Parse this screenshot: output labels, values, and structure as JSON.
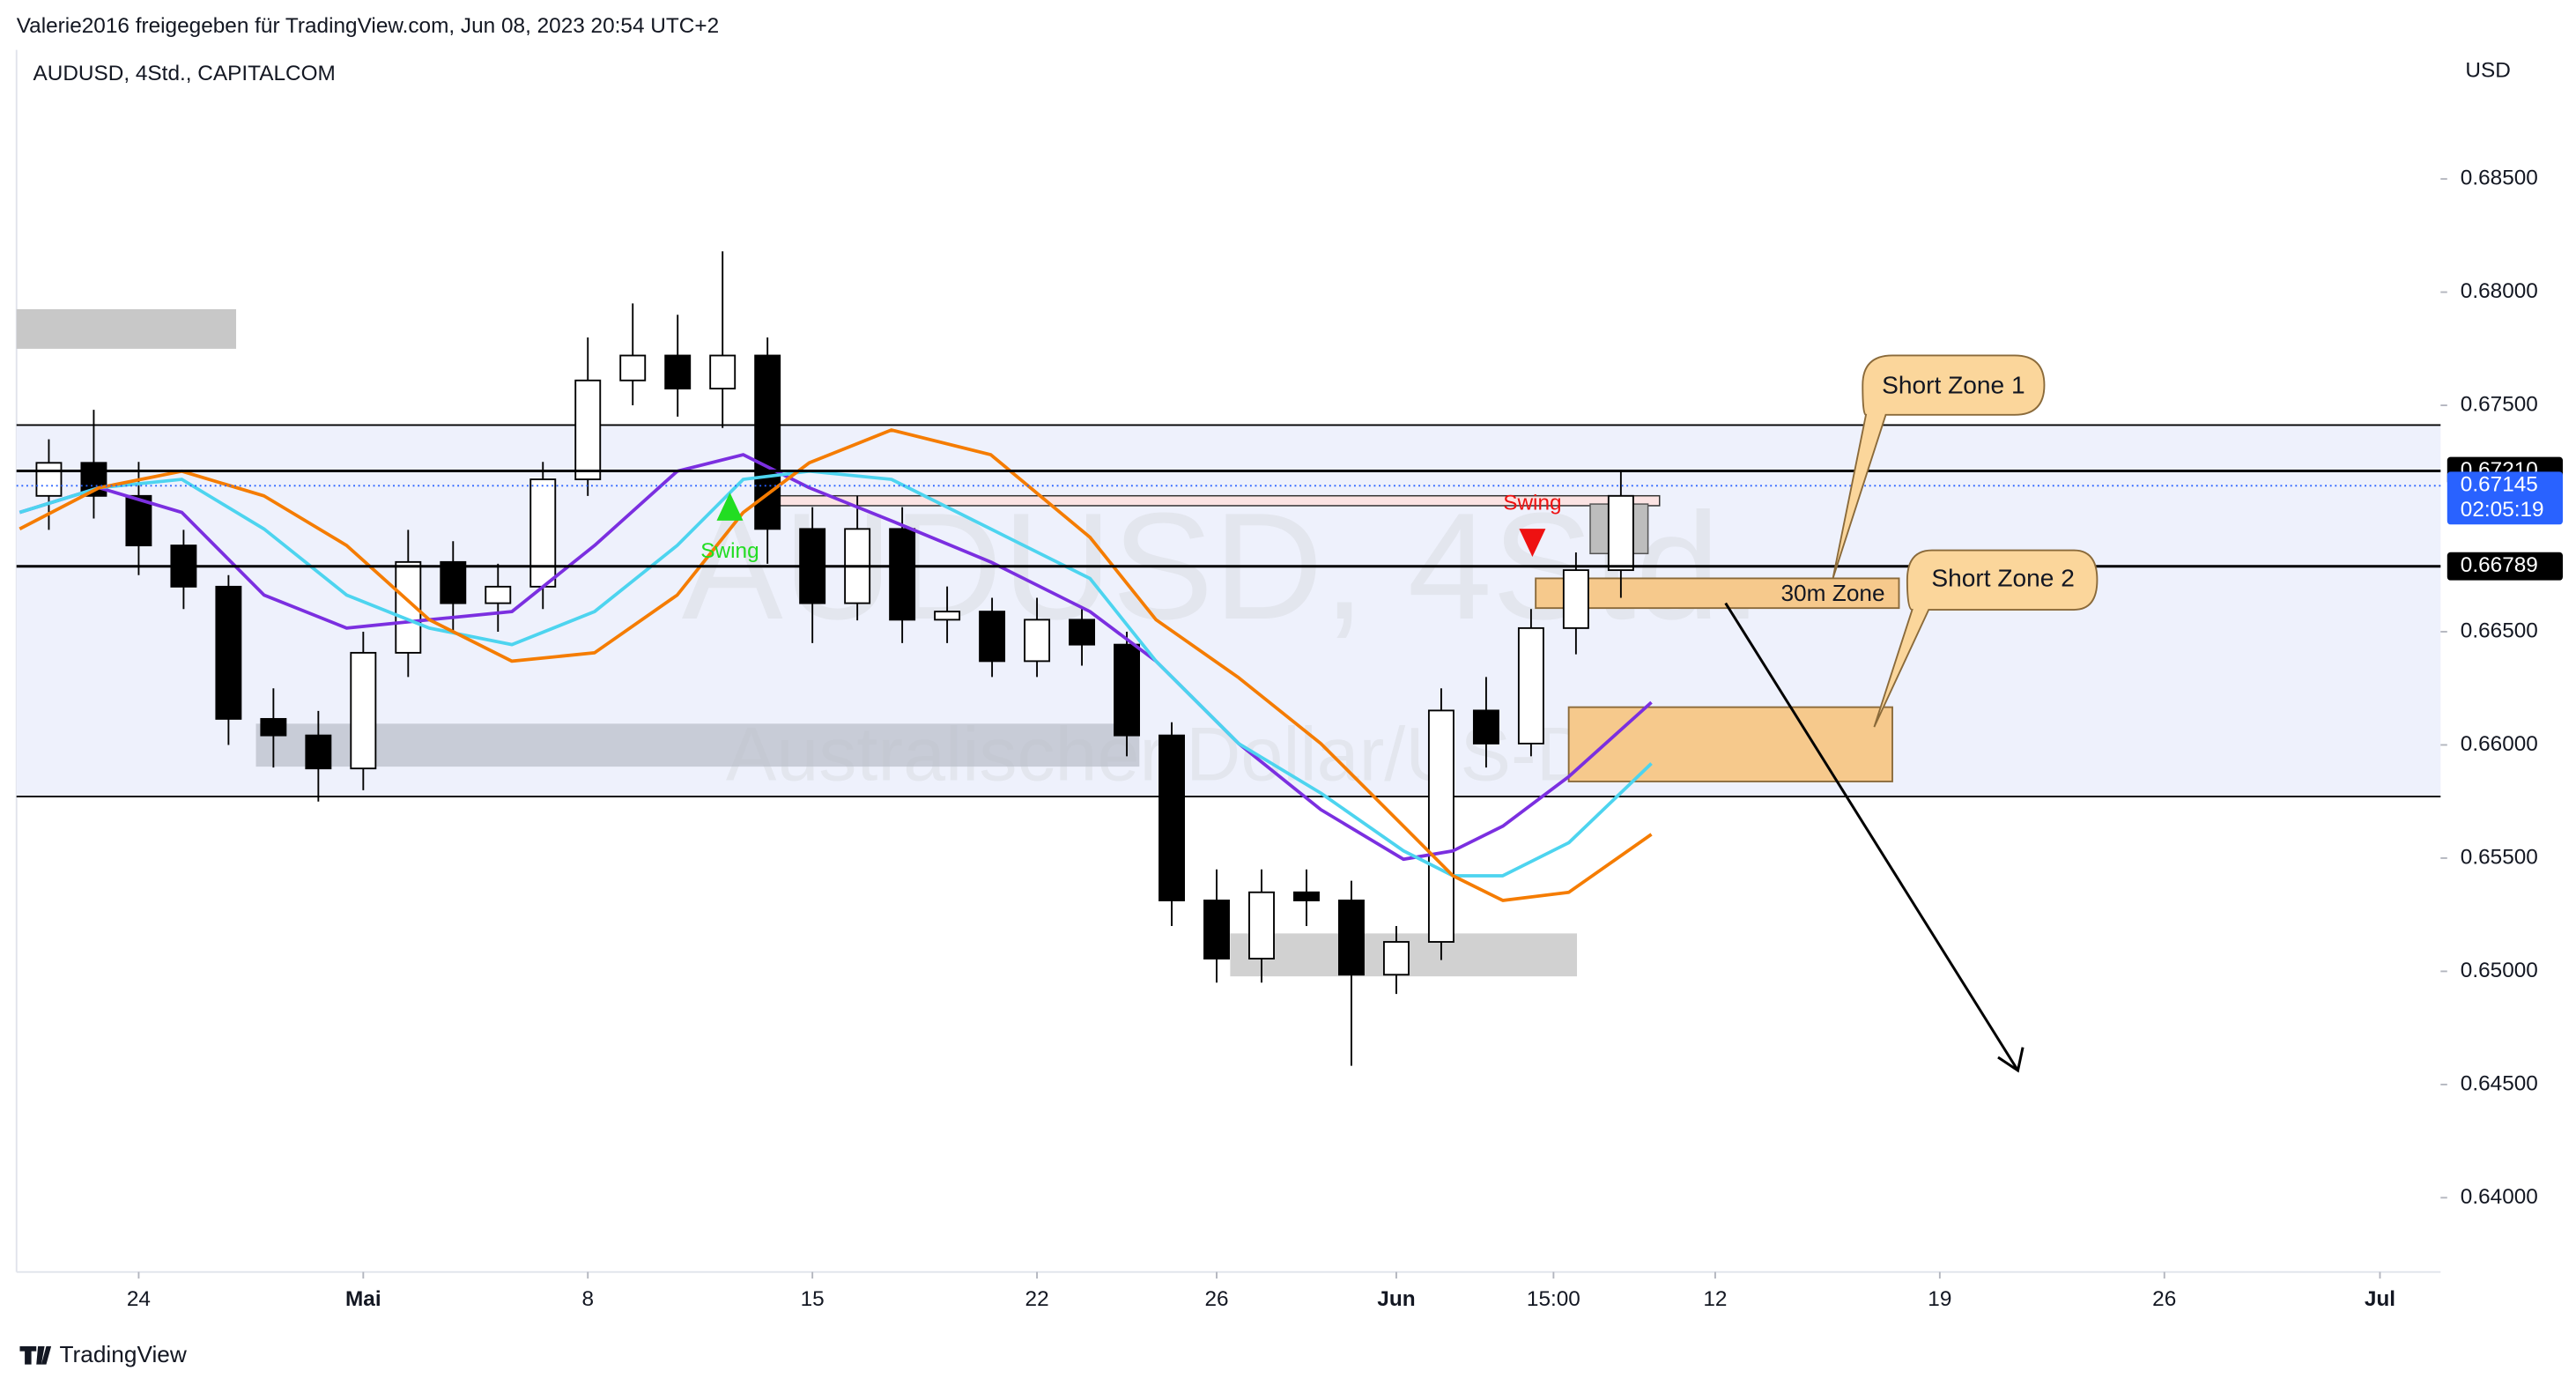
{
  "header": {
    "shared_by": "Valerie2016 freigegeben für TradingView.com, Jun 08, 2023 20:54 UTC+2",
    "symbol": "AUDUSD, 4Std., CAPITALCOM",
    "currency": "USD",
    "brand": "TradingView"
  },
  "chart_data": {
    "type": "candlestick",
    "watermark": "AUDUSD, 4Std.",
    "watermark_sub": "Australischer Dollar/US-Dollar",
    "xlim": [
      -2.72,
      51.25
    ],
    "xticks": [
      {
        "value": 0,
        "label": "24"
      },
      {
        "value": 5,
        "label": "Mai"
      },
      {
        "value": 10,
        "label": "8"
      },
      {
        "value": 15,
        "label": "15"
      },
      {
        "value": 20,
        "label": "22"
      },
      {
        "value": 24,
        "label": "26"
      },
      {
        "value": 28,
        "label": "Jun"
      },
      {
        "value": 31.5,
        "label": "15:00"
      },
      {
        "value": 35.1,
        "label": "12"
      },
      {
        "value": 40.1,
        "label": "19"
      },
      {
        "value": 45.1,
        "label": "26"
      },
      {
        "value": 49.9,
        "label": "Jul"
      }
    ],
    "ylim": [
      0.63672,
      0.6907
    ],
    "yticks": [
      {
        "value": 0.64,
        "label": "0.64000"
      },
      {
        "value": 0.645,
        "label": "0.64500"
      },
      {
        "value": 0.65,
        "label": "0.65000"
      },
      {
        "value": 0.655,
        "label": "0.65500"
      },
      {
        "value": 0.66,
        "label": "0.66000"
      },
      {
        "value": 0.665,
        "label": "0.66500"
      },
      {
        "value": 0.675,
        "label": "0.67500"
      },
      {
        "value": 0.68,
        "label": "0.68000"
      },
      {
        "value": 0.685,
        "label": "0.68500"
      }
    ],
    "up_color": "#ffffff",
    "down_color": "#000000",
    "candles": {
      "x": [
        -2,
        -1,
        0,
        1,
        2,
        3,
        4,
        5,
        6,
        7,
        8,
        9,
        10,
        11,
        12,
        13,
        14,
        15,
        16,
        17,
        18,
        19,
        20,
        21,
        22,
        23,
        24,
        25,
        26,
        27,
        28,
        29,
        30,
        31,
        32,
        33
      ],
      "open": [
        0.671,
        0.67246,
        0.671,
        0.66881,
        0.66699,
        0.66115,
        0.66042,
        0.65896,
        0.66407,
        0.66808,
        0.66626,
        0.66699,
        0.67173,
        0.6761,
        0.6772,
        0.67574,
        0.6772,
        0.66954,
        0.66626,
        0.66954,
        0.66553,
        0.66589,
        0.6637,
        0.66553,
        0.66443,
        0.66042,
        0.65313,
        0.65056,
        0.65349,
        0.65313,
        0.64985,
        0.6513,
        0.66152,
        0.66006,
        0.66516,
        0.66772
      ],
      "high": [
        0.6735,
        0.6748,
        0.6725,
        0.6695,
        0.6675,
        0.6625,
        0.6615,
        0.665,
        0.6695,
        0.669,
        0.668,
        0.6725,
        0.678,
        0.6795,
        0.679,
        0.6818,
        0.678,
        0.6705,
        0.671,
        0.6705,
        0.667,
        0.6665,
        0.6665,
        0.666,
        0.665,
        0.661,
        0.6545,
        0.6545,
        0.6545,
        0.654,
        0.652,
        0.6625,
        0.663,
        0.666,
        0.6685,
        0.6721
      ],
      "low": [
        0.6695,
        0.67,
        0.6675,
        0.666,
        0.66,
        0.659,
        0.6575,
        0.658,
        0.663,
        0.665,
        0.665,
        0.666,
        0.671,
        0.675,
        0.6745,
        0.674,
        0.668,
        0.6645,
        0.6655,
        0.6645,
        0.6645,
        0.663,
        0.663,
        0.6635,
        0.6595,
        0.652,
        0.6495,
        0.6495,
        0.652,
        0.64583,
        0.649,
        0.6505,
        0.659,
        0.6595,
        0.664,
        0.6665
      ],
      "close": [
        0.67246,
        0.671,
        0.66881,
        0.66699,
        0.66115,
        0.66042,
        0.65896,
        0.66407,
        0.66808,
        0.66626,
        0.66699,
        0.67173,
        0.6761,
        0.6772,
        0.67574,
        0.6772,
        0.66954,
        0.66626,
        0.66954,
        0.66553,
        0.66589,
        0.6637,
        0.66553,
        0.66443,
        0.66042,
        0.65313,
        0.65056,
        0.65349,
        0.65313,
        0.64985,
        0.6513,
        0.66152,
        0.66006,
        0.66516,
        0.66772,
        0.671
      ]
    },
    "x": [
      -2.65,
      -0.88,
      0.96,
      2.79,
      4.63,
      6.47,
      8.31,
      10.15,
      11.99,
      13.46,
      14.93,
      16.76,
      18.97,
      21.18,
      22.65,
      24.49,
      26.32,
      28.16,
      29.26,
      30.37,
      31.84,
      33.68
    ],
    "series": [
      {
        "color": "#7b2fe0",
        "values": [
          0.67027,
          0.67136,
          0.67027,
          0.66662,
          0.66516,
          0.66553,
          0.66589,
          0.66881,
          0.67209,
          0.67282,
          0.67136,
          0.6699,
          0.66808,
          0.66589,
          0.6637,
          0.66006,
          0.65714,
          0.65495,
          0.65532,
          0.65641,
          0.6586,
          0.66188
        ]
      },
      {
        "color": "#4dd4ef",
        "values": [
          0.67027,
          0.67136,
          0.67173,
          0.66954,
          0.66662,
          0.66516,
          0.66443,
          0.66589,
          0.66881,
          0.67173,
          0.67209,
          0.67173,
          0.66954,
          0.66735,
          0.6637,
          0.66006,
          0.65787,
          0.65532,
          0.65422,
          0.65422,
          0.65568,
          0.65918
        ]
      },
      {
        "color": "#f57c00",
        "values": [
          0.66954,
          0.67136,
          0.67209,
          0.671,
          0.66881,
          0.66553,
          0.6637,
          0.66407,
          0.66662,
          0.67027,
          0.67246,
          0.67391,
          0.67282,
          0.66917,
          0.66553,
          0.66297,
          0.66006,
          0.65641,
          0.65422,
          0.65313,
          0.65349,
          0.65605
        ]
      }
    ],
    "zone": [
      0.65772,
      0.67413
    ],
    "price_levels": [
      {
        "value": 0.6721,
        "label": "0.67210",
        "color": "#000000"
      },
      {
        "value": 0.67145,
        "label": "0.67145",
        "sublabel": "02:05:19",
        "color": "#2962ff"
      },
      {
        "value": 0.66789,
        "label": "0.66789",
        "color": "#000000"
      }
    ],
    "annotations": {
      "short_zone_1": "Short Zone 1",
      "short_zone_2": "Short Zone 2",
      "zone_30m": "30m Zone",
      "swing_low": "Swing",
      "swing_high": "Swing"
    }
  }
}
